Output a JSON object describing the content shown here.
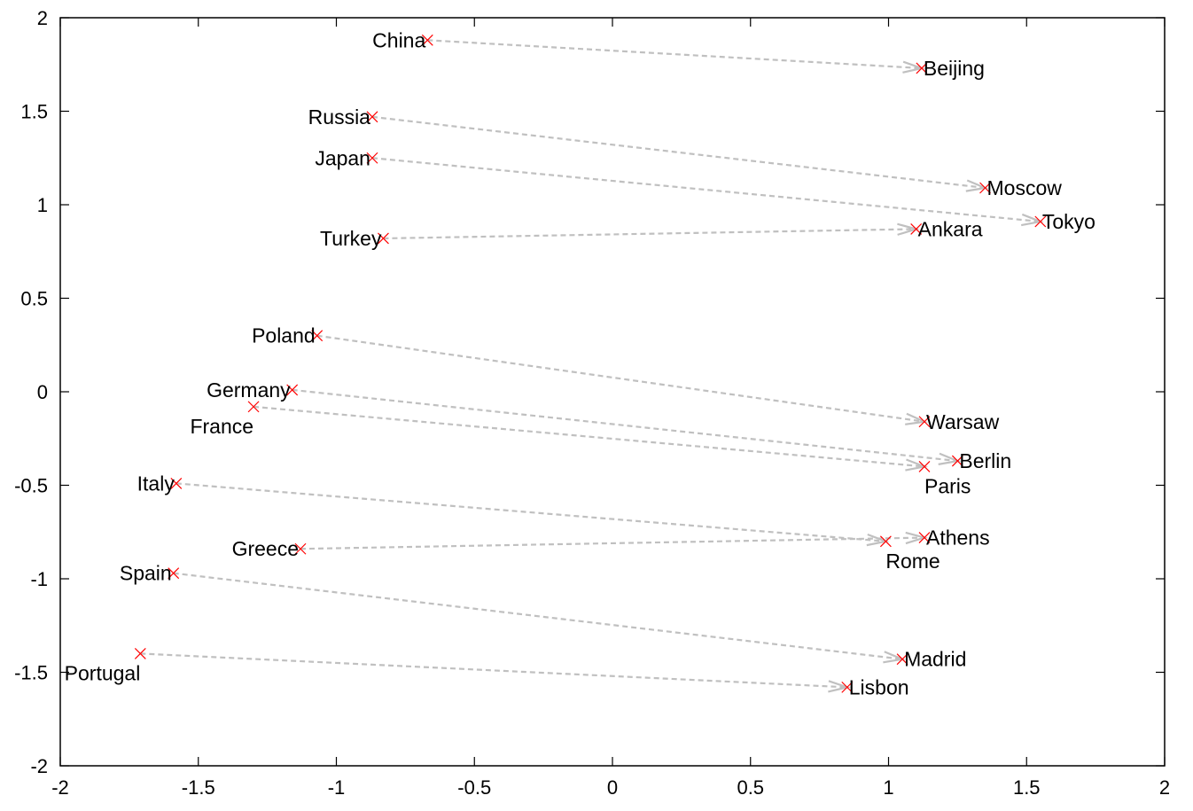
{
  "chart_data": {
    "type": "scatter",
    "title": "",
    "xlabel": "",
    "ylabel": "",
    "xlim": [
      -2,
      2
    ],
    "ylim": [
      -2,
      2
    ],
    "xticks": [
      "-2",
      "-1.5",
      "-1",
      "-0.5",
      "0",
      "0.5",
      "1",
      "1.5",
      "2"
    ],
    "yticks": [
      "2",
      "1.5",
      "1",
      "0.5",
      "0",
      "-0.5",
      "-1",
      "-1.5",
      "-2"
    ],
    "xtick_values": [
      -2,
      -1.5,
      -1,
      -0.5,
      0,
      0.5,
      1,
      1.5,
      2
    ],
    "ytick_values": [
      2,
      1.5,
      1,
      0.5,
      0,
      -0.5,
      -1,
      -1.5,
      -2
    ],
    "grid": false,
    "colors": {
      "marker": "#ff0000",
      "arrow": "#c0c0c0",
      "axis": "#000000"
    },
    "pairs": [
      {
        "country": "China",
        "country_xy": [
          -0.67,
          1.88
        ],
        "capital": "Beijing",
        "capital_xy": [
          1.12,
          1.73
        ]
      },
      {
        "country": "Russia",
        "country_xy": [
          -0.87,
          1.47
        ],
        "capital": "Moscow",
        "capital_xy": [
          1.35,
          1.09
        ]
      },
      {
        "country": "Japan",
        "country_xy": [
          -0.87,
          1.25
        ],
        "capital": "Tokyo",
        "capital_xy": [
          1.55,
          0.91
        ]
      },
      {
        "country": "Turkey",
        "country_xy": [
          -0.83,
          0.82
        ],
        "capital": "Ankara",
        "capital_xy": [
          1.1,
          0.87
        ]
      },
      {
        "country": "Poland",
        "country_xy": [
          -1.07,
          0.3
        ],
        "capital": "Warsaw",
        "capital_xy": [
          1.13,
          -0.16
        ]
      },
      {
        "country": "Germany",
        "country_xy": [
          -1.16,
          0.01
        ],
        "capital": "Berlin",
        "capital_xy": [
          1.25,
          -0.37
        ]
      },
      {
        "country": "France",
        "country_xy": [
          -1.3,
          -0.08
        ],
        "capital": "Paris",
        "capital_xy": [
          1.13,
          -0.4
        ]
      },
      {
        "country": "Italy",
        "country_xy": [
          -1.58,
          -0.49
        ],
        "capital": "Rome",
        "capital_xy": [
          0.99,
          -0.8
        ]
      },
      {
        "country": "Greece",
        "country_xy": [
          -1.13,
          -0.84
        ],
        "capital": "Athens",
        "capital_xy": [
          1.13,
          -0.78
        ]
      },
      {
        "country": "Spain",
        "country_xy": [
          -1.59,
          -0.97
        ],
        "capital": "Madrid",
        "capital_xy": [
          1.05,
          -1.43
        ]
      },
      {
        "country": "Portugal",
        "country_xy": [
          -1.71,
          -1.4
        ],
        "capital": "Lisbon",
        "capital_xy": [
          0.85,
          -1.58
        ]
      }
    ]
  }
}
